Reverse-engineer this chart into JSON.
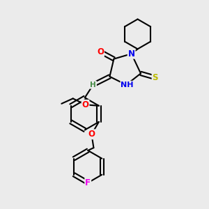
{
  "background_color": "#ebebeb",
  "atom_colors": {
    "O": "#ff0000",
    "N": "#0000ee",
    "S": "#bbbb00",
    "F": "#ee00ee",
    "C": "#000000",
    "H": "#448844"
  },
  "bond_color": "#000000",
  "bond_width": 1.5,
  "dbl_sep": 0.09
}
